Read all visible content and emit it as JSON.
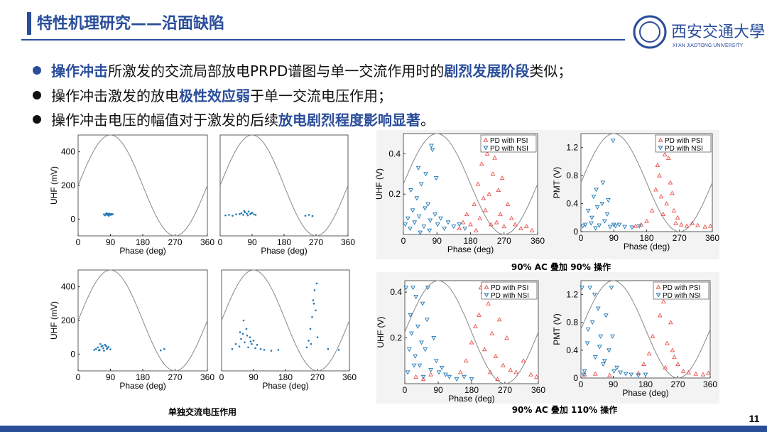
{
  "header": {
    "title": "特性机理研究——沿面缺陷",
    "logo_text": "西安交通大學",
    "logo_sub": "XI'AN JIAOTONG UNIVERSITY"
  },
  "bullets": [
    [
      "操作冲击",
      "所激发的交流局部放电PRPD谱图与单一交流作用时的",
      "剧烈发展阶段",
      "类似；"
    ],
    [
      "操作冲击激发的放电",
      "极性效应弱",
      "于单一交流电压作用；"
    ],
    [
      "操作冲击电压的幅值对于激发的后续",
      "放电剧烈程度影响显著",
      "。"
    ]
  ],
  "captions": [
    "单独交流电压作用",
    "90% AC 叠加 90% 操作",
    "90% AC 叠加 110% 操作"
  ],
  "page_number": "11",
  "chart_data": [
    {
      "type": "scatter",
      "xlabel": "Phase (deg)",
      "ylabel": "UHF (mV)",
      "xlim": [
        0,
        360
      ],
      "xticks": [
        0,
        90,
        180,
        270,
        360
      ],
      "ylim": [
        -100,
        500
      ],
      "yticks": [
        0,
        200,
        400
      ],
      "series": [
        {
          "color": "#1f77b4",
          "x": [
            72,
            75,
            78,
            80,
            82,
            84,
            86,
            88,
            90,
            92,
            94,
            96,
            79,
            85
          ],
          "values": [
            28,
            22,
            32,
            26,
            30,
            24,
            33,
            28,
            25,
            31,
            27,
            29,
            35,
            20
          ]
        }
      ]
    },
    {
      "type": "scatter",
      "xlabel": "Phase (deg)",
      "xlim": [
        0,
        360
      ],
      "xticks": [
        0,
        90,
        180,
        270,
        360
      ],
      "ylim": [
        -100,
        500
      ],
      "series": [
        {
          "color": "#1f77b4",
          "x": [
            15,
            25,
            35,
            45,
            55,
            60,
            65,
            70,
            75,
            80,
            85,
            90,
            95,
            100,
            68,
            78,
            88,
            240,
            250,
            260
          ],
          "values": [
            22,
            25,
            20,
            28,
            30,
            35,
            25,
            40,
            32,
            45,
            30,
            38,
            28,
            25,
            48,
            22,
            35,
            20,
            25,
            18
          ]
        }
      ]
    },
    {
      "type": "scatter",
      "xlabel": "Phase (deg)",
      "ylabel": "UHF (mV)",
      "xlim": [
        0,
        360
      ],
      "xticks": [
        0,
        90,
        180,
        270,
        360
      ],
      "ylim": [
        -100,
        500
      ],
      "yticks": [
        0,
        200,
        400
      ],
      "series": [
        {
          "color": "#1f77b4",
          "x": [
            50,
            55,
            60,
            65,
            70,
            75,
            80,
            85,
            90,
            62,
            72,
            82,
            58,
            68,
            78,
            230,
            240,
            45
          ],
          "values": [
            30,
            40,
            25,
            45,
            35,
            55,
            30,
            42,
            28,
            60,
            20,
            38,
            22,
            50,
            48,
            22,
            30,
            25
          ]
        }
      ]
    },
    {
      "type": "scatter",
      "xlabel": "Phase (deg)",
      "xlim": [
        0,
        360
      ],
      "xticks": [
        0,
        90,
        180,
        270,
        360
      ],
      "ylim": [
        -100,
        500
      ],
      "series": [
        {
          "color": "#1f77b4",
          "x": [
            30,
            40,
            50,
            55,
            60,
            65,
            70,
            75,
            80,
            85,
            90,
            95,
            100,
            110,
            120,
            62,
            72,
            82,
            52,
            140,
            160,
            240,
            245,
            250,
            255,
            260,
            262,
            265,
            270,
            258,
            252,
            268,
            300,
            330
          ],
          "values": [
            30,
            60,
            45,
            90,
            120,
            70,
            150,
            40,
            100,
            60,
            80,
            35,
            55,
            30,
            25,
            200,
            110,
            75,
            130,
            20,
            25,
            40,
            80,
            150,
            220,
            300,
            380,
            260,
            100,
            320,
            60,
            420,
            30,
            25
          ]
        }
      ]
    },
    {
      "type": "scatter",
      "xlabel": "Phase (deg)",
      "ylabel": "UHF (V)",
      "xlim": [
        0,
        360
      ],
      "xticks": [
        0,
        90,
        180,
        270,
        360
      ],
      "ylim": [
        0,
        0.5
      ],
      "yticks": [
        0.2,
        0.4
      ],
      "legend": "upper right",
      "series": [
        {
          "name": "PD with PSI",
          "color": "#e8534f",
          "marker": "triangle-up",
          "x": [
            150,
            160,
            170,
            180,
            190,
            200,
            205,
            210,
            220,
            225,
            230,
            240,
            250,
            255,
            260,
            270,
            280,
            290,
            300,
            315,
            330,
            345,
            215,
            235,
            245,
            265,
            195
          ],
          "values": [
            0.03,
            0.06,
            0.1,
            0.05,
            0.15,
            0.25,
            0.08,
            0.35,
            0.12,
            0.4,
            0.2,
            0.3,
            0.06,
            0.22,
            0.1,
            0.04,
            0.15,
            0.08,
            0.05,
            0.03,
            0.04,
            0.02,
            0.18,
            0.05,
            0.38,
            0.28,
            0.02
          ]
        },
        {
          "name": "PD with NSI",
          "color": "#1f77b4",
          "marker": "triangle-down",
          "x": [
            5,
            12,
            18,
            25,
            30,
            36,
            42,
            48,
            55,
            60,
            66,
            72,
            78,
            85,
            92,
            100,
            110,
            120,
            135,
            150,
            165,
            20,
            40,
            58,
            75,
            88,
            70,
            45
          ],
          "values": [
            0.05,
            0.08,
            0.03,
            0.12,
            0.06,
            0.18,
            0.09,
            0.25,
            0.04,
            0.3,
            0.15,
            0.07,
            0.42,
            0.1,
            0.05,
            0.08,
            0.03,
            0.06,
            0.04,
            0.05,
            0.03,
            0.22,
            0.33,
            0.13,
            0.44,
            0.28,
            0.02,
            0.01
          ]
        }
      ]
    },
    {
      "type": "scatter",
      "xlabel": "Phase (deg)",
      "ylabel": "PMT (V)",
      "xlim": [
        0,
        360
      ],
      "xticks": [
        0,
        90,
        180,
        270,
        360
      ],
      "ylim": [
        0,
        1.4
      ],
      "yticks": [
        0,
        0.4,
        0.8,
        1.2
      ],
      "legend": "upper right",
      "series": [
        {
          "name": "PD with PSI",
          "color": "#e8534f",
          "marker": "triangle-up",
          "x": [
            150,
            165,
            180,
            195,
            205,
            215,
            220,
            230,
            235,
            245,
            255,
            265,
            275,
            290,
            305,
            320,
            340,
            355,
            210,
            240,
            250,
            225,
            260
          ],
          "values": [
            0.08,
            0.1,
            0.15,
            0.3,
            0.6,
            0.8,
            0.5,
            1.1,
            0.4,
            0.7,
            0.3,
            0.2,
            0.1,
            0.08,
            0.12,
            0.09,
            0.07,
            0.08,
            0.95,
            1.05,
            0.55,
            0.25,
            0.12
          ]
        },
        {
          "name": "PD with NSI",
          "color": "#1f77b4",
          "marker": "triangle-down",
          "x": [
            5,
            12,
            20,
            28,
            35,
            42,
            50,
            58,
            65,
            72,
            80,
            88,
            95,
            105,
            120,
            140,
            160,
            30,
            45,
            60,
            75,
            90,
            40
          ],
          "values": [
            0.08,
            0.1,
            0.3,
            0.12,
            0.5,
            0.6,
            0.09,
            0.4,
            0.15,
            0.25,
            0.07,
            1.3,
            0.08,
            0.1,
            0.07,
            0.06,
            0.08,
            0.2,
            0.35,
            0.7,
            0.45,
            0.1,
            0.05
          ]
        }
      ]
    },
    {
      "type": "scatter",
      "xlabel": "Phase (deg)",
      "ylabel": "UHF (V)",
      "xlim": [
        0,
        360
      ],
      "xticks": [
        0,
        90,
        180,
        270,
        360
      ],
      "ylim": [
        0,
        0.45
      ],
      "yticks": [
        0.2,
        0.4
      ],
      "legend": "upper right",
      "series": [
        {
          "name": "PD with PSI",
          "color": "#e8534f",
          "marker": "triangle-up",
          "x": [
            30,
            50,
            70,
            150,
            165,
            180,
            190,
            200,
            210,
            215,
            225,
            235,
            245,
            255,
            265,
            275,
            285,
            300,
            320,
            340,
            355,
            205,
            230,
            250
          ],
          "values": [
            0.03,
            0.02,
            0.04,
            0.05,
            0.1,
            0.18,
            0.25,
            0.3,
            0.4,
            0.15,
            0.35,
            0.22,
            0.12,
            0.28,
            0.08,
            0.2,
            0.06,
            0.05,
            0.1,
            0.04,
            0.03,
            0.42,
            0.05,
            0.02
          ]
        },
        {
          "name": "PD with NSI",
          "color": "#1f77b4",
          "marker": "triangle-down",
          "x": [
            3,
            8,
            15,
            22,
            28,
            35,
            40,
            48,
            55,
            62,
            70,
            78,
            85,
            92,
            100,
            110,
            120,
            140,
            160,
            180,
            12,
            30,
            45,
            60,
            25,
            18,
            50
          ],
          "values": [
            0.42,
            0.05,
            0.3,
            0.42,
            0.12,
            0.25,
            0.08,
            0.35,
            0.15,
            0.42,
            0.06,
            0.2,
            0.1,
            0.05,
            0.07,
            0.04,
            0.03,
            0.02,
            0.03,
            0.02,
            0.15,
            0.38,
            0.18,
            0.28,
            0.08,
            0.22,
            0.03
          ]
        }
      ]
    },
    {
      "type": "scatter",
      "xlabel": "Phase (deg)",
      "ylabel": "PMT (V)",
      "xlim": [
        0,
        360
      ],
      "xticks": [
        0,
        90,
        180,
        270,
        360
      ],
      "ylim": [
        0,
        1.4
      ],
      "yticks": [
        0,
        0.4,
        0.8,
        1.2
      ],
      "legend": "upper right",
      "series": [
        {
          "name": "PD with PSI",
          "color": "#e8534f",
          "marker": "triangle-up",
          "x": [
            10,
            40,
            80,
            160,
            175,
            190,
            200,
            210,
            220,
            230,
            240,
            250,
            260,
            270,
            285,
            300,
            320,
            340,
            355,
            215,
            245,
            255,
            235
          ],
          "values": [
            0.05,
            0.06,
            0.04,
            0.07,
            0.2,
            0.35,
            0.6,
            1.3,
            0.9,
            1.1,
            0.5,
            0.8,
            0.3,
            0.2,
            0.1,
            0.08,
            0.06,
            0.05,
            0.07,
            1.3,
            1.25,
            0.4,
            0.15
          ]
        },
        {
          "name": "PD with NSI",
          "color": "#1f77b4",
          "marker": "triangle-down",
          "x": [
            3,
            10,
            18,
            25,
            32,
            40,
            48,
            55,
            62,
            70,
            78,
            85,
            92,
            100,
            110,
            125,
            140,
            160,
            180,
            20,
            38,
            52,
            66,
            8,
            88
          ],
          "values": [
            1.3,
            0.1,
            0.5,
            1.3,
            0.8,
            0.3,
            1.0,
            0.6,
            0.2,
            0.9,
            0.4,
            1.3,
            0.1,
            0.15,
            0.08,
            0.06,
            0.05,
            0.04,
            0.05,
            0.7,
            1.2,
            0.45,
            0.25,
            0.05,
            0.6
          ]
        }
      ]
    }
  ]
}
